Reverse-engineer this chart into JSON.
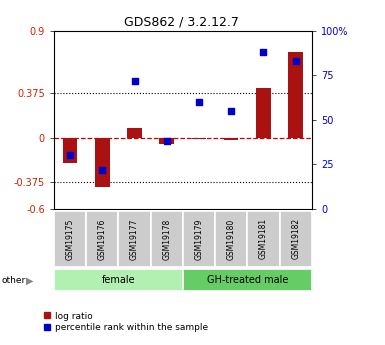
{
  "title": "GDS862 / 3.2.12.7",
  "samples": [
    "GSM19175",
    "GSM19176",
    "GSM19177",
    "GSM19178",
    "GSM19179",
    "GSM19180",
    "GSM19181",
    "GSM19182"
  ],
  "log_ratio": [
    -0.21,
    -0.42,
    0.08,
    -0.05,
    -0.01,
    -0.02,
    0.42,
    0.72
  ],
  "percentile_rank": [
    30,
    22,
    72,
    38,
    60,
    55,
    88,
    83
  ],
  "ylim_left": [
    -0.6,
    0.9
  ],
  "ylim_right": [
    0,
    100
  ],
  "yticks_left": [
    -0.6,
    -0.375,
    0,
    0.375,
    0.9
  ],
  "yticks_right": [
    0,
    25,
    50,
    75,
    100
  ],
  "ytick_labels_left": [
    "-0.6",
    "-0.375",
    "0",
    "0.375",
    "0.9"
  ],
  "ytick_labels_right": [
    "0",
    "25",
    "50",
    "75",
    "100%"
  ],
  "hlines": [
    0.375,
    -0.375
  ],
  "groups": [
    {
      "label": "female",
      "start": 0,
      "end": 3,
      "color": "#b2f0b2"
    },
    {
      "label": "GH-treated male",
      "start": 4,
      "end": 7,
      "color": "#66cc66"
    }
  ],
  "sample_box_color": "#cccccc",
  "bar_color": "#aa1111",
  "point_color": "#0000cc",
  "dashed_line_color": "#cc0000",
  "background_color": "#ffffff",
  "other_label": "other",
  "legend_log_ratio": "log ratio",
  "legend_percentile": "percentile rank within the sample",
  "title_fontsize": 9,
  "tick_fontsize": 7,
  "bar_width": 0.45
}
